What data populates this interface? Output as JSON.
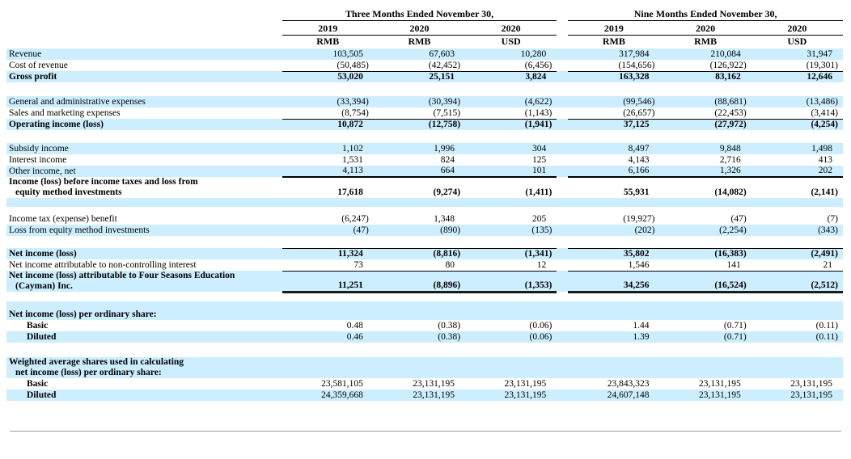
{
  "table": {
    "col_groups": [
      {
        "title": "Three Months Ended November 30,"
      },
      {
        "title": "Nine Months Ended November 30,"
      }
    ],
    "years": [
      "2019",
      "2020",
      "2020",
      "2019",
      "2020",
      "2020"
    ],
    "currencies": [
      "RMB",
      "RMB",
      "USD",
      "RMB",
      "RMB",
      "USD"
    ],
    "rows": [
      {
        "label": "Revenue",
        "values": [
          "103,505",
          "67,603",
          "10,280",
          "317,984",
          "210,084",
          "31,947"
        ],
        "bg": "blue"
      },
      {
        "label": "Cost of revenue",
        "values": [
          "(50,485)",
          "(42,452)",
          "(6,456)",
          "(154,656)",
          "(126,922)",
          "(19,301)"
        ],
        "bg": "white",
        "rule_below": "thin"
      },
      {
        "label": "Gross profit",
        "values": [
          "53,020",
          "25,151",
          "3,824",
          "163,328",
          "83,162",
          "12,646"
        ],
        "bg": "blue",
        "bold": true
      },
      {
        "blank": true,
        "h": 17,
        "bg": "white"
      },
      {
        "label": "General and administrative expenses",
        "values": [
          "(33,394)",
          "(30,394)",
          "(4,622)",
          "(99,546)",
          "(88,681)",
          "(13,486)"
        ],
        "bg": "blue"
      },
      {
        "label": "Sales and marketing expenses",
        "values": [
          "(8,754)",
          "(7,515)",
          "(1,143)",
          "(26,657)",
          "(22,453)",
          "(3,414)"
        ],
        "bg": "white",
        "rule_below": "thin"
      },
      {
        "label": "Operating income (loss)",
        "values": [
          "10,872",
          "(12,758)",
          "(1,941)",
          "37,125",
          "(27,972)",
          "(4,254)"
        ],
        "bg": "blue",
        "bold": true
      },
      {
        "blank": true,
        "h": 16,
        "bg": "white"
      },
      {
        "label": "Subsidy income",
        "values": [
          "1,102",
          "1,996",
          "304",
          "8,497",
          "9,848",
          "1,498"
        ],
        "bg": "blue"
      },
      {
        "label": "Interest income",
        "values": [
          "1,531",
          "824",
          "125",
          "4,143",
          "2,716",
          "413"
        ],
        "bg": "white"
      },
      {
        "label": "Other income, net",
        "values": [
          "4,113",
          "664",
          "101",
          "6,166",
          "1,326",
          "202"
        ],
        "bg": "blue",
        "rule_below": "thick"
      },
      {
        "label": "Income (loss) before income taxes and loss from",
        "label2": "equity method investments",
        "values": [
          "17,618",
          "(9,274)",
          "(1,411)",
          "55,931",
          "(14,082)",
          "(2,141)"
        ],
        "bg": "white",
        "bold": true
      },
      {
        "blank": true,
        "h": 11,
        "bg": "blue"
      },
      {
        "blank": true,
        "h": 8,
        "bg": "white"
      },
      {
        "label": "Income tax (expense) benefit",
        "values": [
          "(6,247)",
          "1,348",
          "205",
          "(19,927)",
          "(47)",
          "(7)"
        ],
        "bg": "white"
      },
      {
        "label": "Loss from equity method investments",
        "values": [
          "(47)",
          "(890)",
          "(135)",
          "(202)",
          "(2,254)",
          "(343)"
        ],
        "bg": "blue"
      },
      {
        "blank": true,
        "h": 15,
        "bg": "white",
        "rule_below": "thin"
      },
      {
        "label": "Net income (loss)",
        "values": [
          "11,324",
          "(8,816)",
          "(1,341)",
          "35,802",
          "(16,383)",
          "(2,491)"
        ],
        "bg": "blue",
        "bold": true
      },
      {
        "label": "Net income attributable to non-controlling interest",
        "values": [
          "73",
          "80",
          "12",
          "1,546",
          "141",
          "21"
        ],
        "bg": "white",
        "rule_below": "thin"
      },
      {
        "label": "Net income (loss) attributable to Four Seasons Education",
        "label2": "(Cayman) Inc.",
        "values": [
          "11,251",
          "(8,896)",
          "(1,353)",
          "34,256",
          "(16,524)",
          "(2,512)"
        ],
        "bg": "blue",
        "bold": true,
        "rule_below": "heavy"
      },
      {
        "blank": true,
        "h": 12,
        "bg": "white"
      },
      {
        "blank": true,
        "h": 9,
        "bg": "blue"
      },
      {
        "label": "Net income (loss) per ordinary share:",
        "values": [
          "",
          "",
          "",
          "",
          "",
          ""
        ],
        "bg": "blue",
        "bold": true
      },
      {
        "label": "Basic",
        "values": [
          "0.48",
          "(0.38)",
          "(0.06)",
          "1.44",
          "(0.71)",
          "(0.11)"
        ],
        "bg": "white",
        "bold_label": true,
        "indent": true
      },
      {
        "label": "Diluted",
        "values": [
          "0.46",
          "(0.38)",
          "(0.06)",
          "1.39",
          "(0.71)",
          "(0.11)"
        ],
        "bg": "blue",
        "bold_label": true,
        "indent": true
      },
      {
        "blank": true,
        "h": 18,
        "bg": "white"
      },
      {
        "label": "Weighted average shares used in calculating",
        "label2": "net income (loss) per ordinary share:",
        "values": [
          "",
          "",
          "",
          "",
          "",
          ""
        ],
        "bg": "blue",
        "bold": true
      },
      {
        "label": "Basic",
        "values": [
          "23,581,105",
          "23,131,195",
          "23,131,195",
          "23,843,323",
          "23,131,195",
          "23,131,195"
        ],
        "bg": "white",
        "bold_label": true,
        "indent": true
      },
      {
        "label": "Diluted",
        "values": [
          "24,359,668",
          "23,131,195",
          "23,131,195",
          "24,607,148",
          "23,131,195",
          "23,131,195"
        ],
        "bg": "blue",
        "bold_label": true,
        "indent": true
      }
    ]
  },
  "colors": {
    "stripe_blue": "#cceeff",
    "rule_black": "#000000",
    "bottom_rule_gray": "#9b9b9b"
  }
}
